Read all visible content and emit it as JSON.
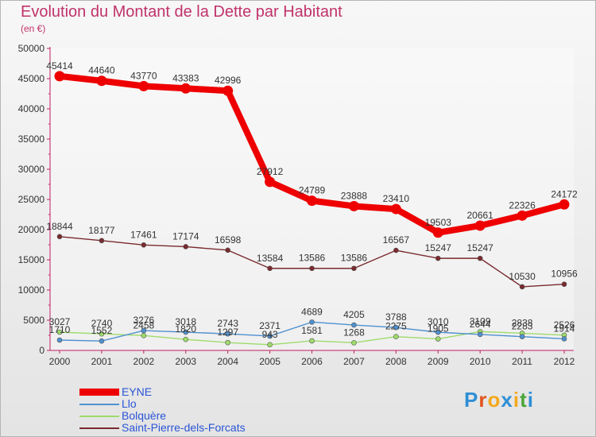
{
  "header": {
    "title": "Evolution du Montant de la Dette par Habitant",
    "subtitle": "(en €)"
  },
  "logo": {
    "letters": [
      "P",
      "r",
      "o",
      "x",
      "i",
      "t",
      "i"
    ],
    "colors": [
      "#2f8fd6",
      "#e2541d",
      "#f4a81d",
      "#2f8fd6",
      "#f4a81d",
      "#4aa63a",
      "#2f8fd6"
    ]
  },
  "chart_data": {
    "type": "line",
    "x": [
      "2000",
      "2001",
      "2002",
      "2003",
      "2004",
      "2005",
      "2006",
      "2007",
      "2008",
      "2009",
      "2010",
      "2011",
      "2012"
    ],
    "ylim": [
      0,
      50000
    ],
    "yticks": [
      "0",
      "5000",
      "10000",
      "15000",
      "20000",
      "25000",
      "30000",
      "35000",
      "40000",
      "45000",
      "50000"
    ],
    "grid": false,
    "legend_position": "bottom-left",
    "series": [
      {
        "name": "EYNE",
        "color": "#ee0000",
        "values": [
          45414,
          44640,
          43770,
          43383,
          42996,
          27912,
          24789,
          23888,
          23410,
          19503,
          20661,
          22326,
          24172
        ],
        "labels": [
          "45414",
          "44640",
          "43770",
          "43383",
          "42996",
          "27912",
          "24789",
          "23888",
          "23410",
          "19503",
          "20661",
          "22326",
          "24172"
        ]
      },
      {
        "name": "Llo",
        "color": "#4f90cf",
        "values": [
          1710,
          1552,
          3276,
          3018,
          2743,
          2371,
          4689,
          4205,
          3788,
          3010,
          2644,
          2283,
          1914
        ],
        "labels": [
          "1710",
          "1552",
          "3276",
          "3018",
          "2743",
          "2371",
          "4689",
          "4205",
          "3788",
          "3010",
          "2644",
          "2283",
          "1914"
        ]
      },
      {
        "name": "Bolquère",
        "color": "#9edc6b",
        "values": [
          3027,
          2740,
          2458,
          1820,
          1297,
          943,
          1581,
          1268,
          2275,
          1905,
          3109,
          2838,
          2526
        ],
        "labels": [
          "3027",
          "2740",
          "2458",
          "1820",
          "1297",
          "943",
          "1581",
          "1268",
          "2275",
          "1905",
          "3109",
          "2838",
          "2526"
        ]
      },
      {
        "name": "Saint-Pierre-dels-Forcats",
        "color": "#7a2a2e",
        "values": [
          18844,
          18177,
          17461,
          17174,
          16598,
          13584,
          13586,
          13586,
          16567,
          15247,
          15247,
          10530,
          10956
        ],
        "labels": [
          "18844",
          "18177",
          "17461",
          "17174",
          "16598",
          "13584",
          "13586",
          "13586",
          "16567",
          "15247",
          "15247",
          "10530",
          "10956"
        ]
      }
    ]
  }
}
